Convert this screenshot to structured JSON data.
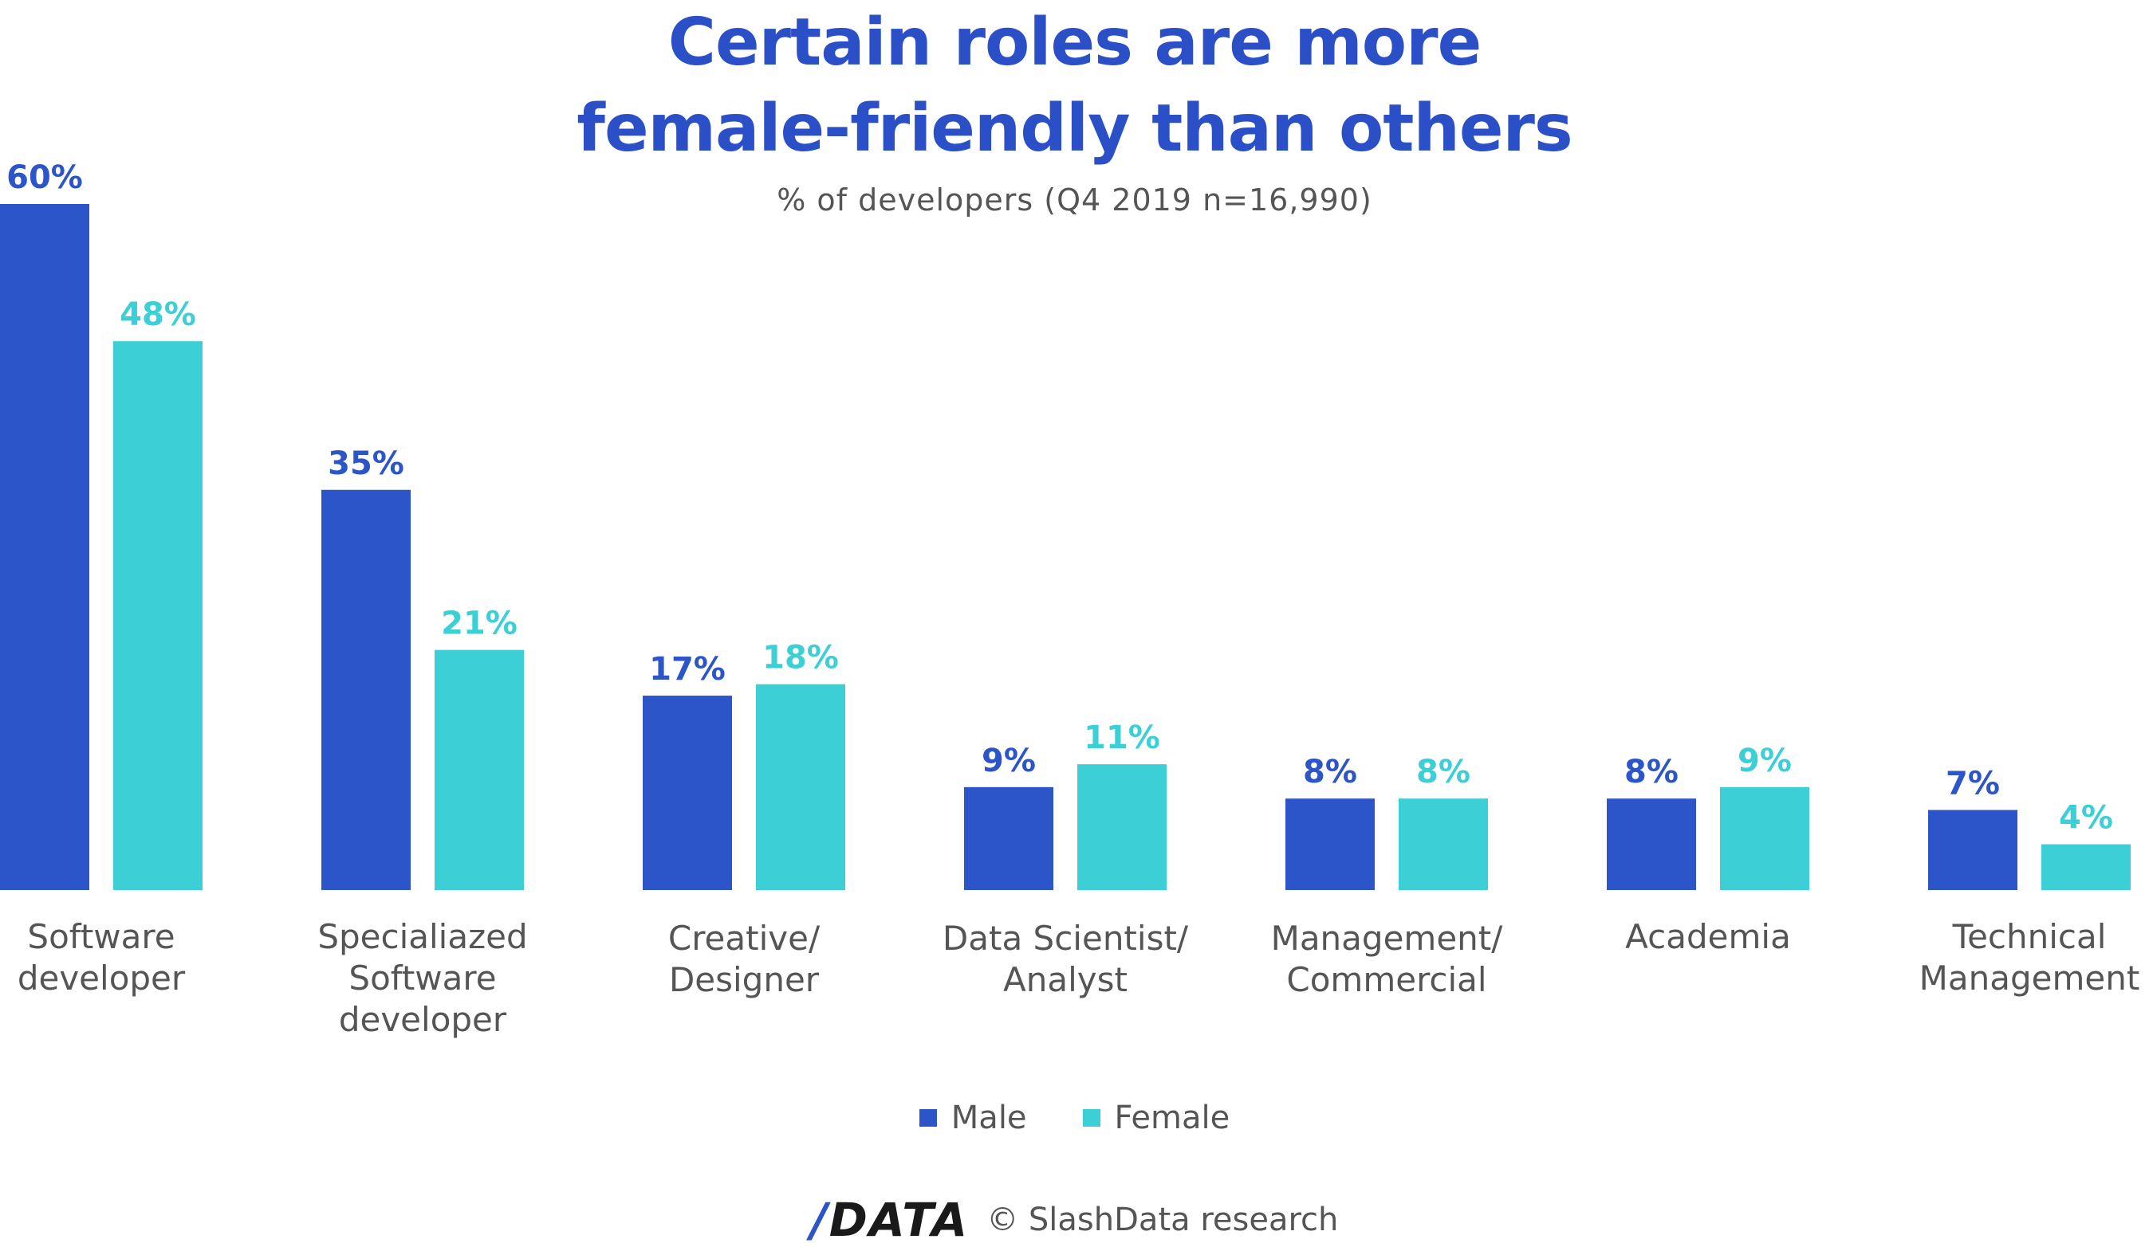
{
  "colors": {
    "male": "#2B55C8",
    "female": "#3CCFD6",
    "title": "#2B4FC7",
    "label": "#555555"
  },
  "chart_data": {
    "type": "bar",
    "title": "Certain roles are more female-friendly than others",
    "title_lines": [
      "Certain roles are more",
      "female-friendly than others"
    ],
    "subtitle": "% of developers (Q4 2019 n=16,990)",
    "categories": [
      [
        "Software",
        "developer"
      ],
      [
        "Specialiazed",
        "Software",
        "developer"
      ],
      [
        "Creative/",
        "Designer"
      ],
      [
        "Data Scientist/",
        "Analyst"
      ],
      [
        "Management/",
        "Commercial"
      ],
      [
        "Academia"
      ],
      [
        "Technical",
        "Management"
      ]
    ],
    "series": [
      {
        "name": "Male",
        "values": [
          60,
          35,
          17,
          9,
          8,
          8,
          7
        ],
        "labels": [
          "60%",
          "35%",
          "17%",
          "9%",
          "8%",
          "8%",
          "7%"
        ]
      },
      {
        "name": "Female",
        "values": [
          48,
          21,
          18,
          11,
          8,
          9,
          4
        ],
        "labels": [
          "48%",
          "21%",
          "18%",
          "11%",
          "8%",
          "9%",
          "4%"
        ]
      }
    ],
    "ylim": [
      0,
      60
    ],
    "grid": false,
    "legend": "bottom-center"
  },
  "legend": {
    "male_label": "Male",
    "female_label": "Female"
  },
  "footer": {
    "logo_slash": "/",
    "logo_text": "DATA",
    "credit": "© SlashData research"
  }
}
